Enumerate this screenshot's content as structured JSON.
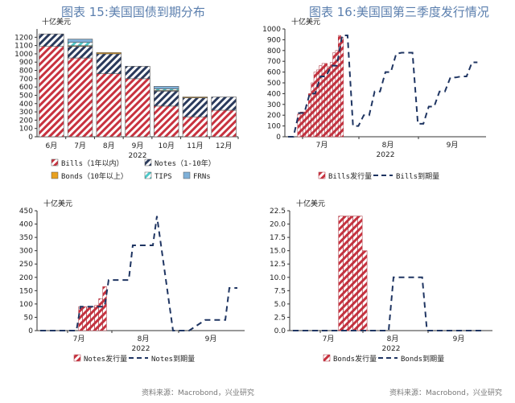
{
  "titles": {
    "left": "图表 15:美国国债到期分布",
    "right": "图表 16:美国国第三季度发行情况"
  },
  "sources": {
    "left": "资料来源：Macrobond，兴业研究",
    "right": "资料来源：Macrobond，兴业研究"
  },
  "colors": {
    "bills": "#c8323f",
    "notes": "#2a3a5c",
    "bonds": "#e8a020",
    "tips": "#4ec9c9",
    "frns": "#7fb0d8",
    "redemption_line": "#1f3562"
  },
  "chart_data": [
    {
      "type": "bar",
      "stacked": true,
      "unit_label": "十亿美元",
      "xlabel": "2022",
      "categories": [
        "6月",
        "7月",
        "8月",
        "9月",
        "10月",
        "11月",
        "12月"
      ],
      "ylim": [
        0,
        1300
      ],
      "yticks": [
        0,
        100,
        200,
        300,
        400,
        500,
        600,
        700,
        800,
        900,
        1000,
        1100,
        1200
      ],
      "series": [
        {
          "name": "Bills（1年以内）",
          "key": "bills",
          "pattern": "hatch",
          "values": [
            1090,
            950,
            760,
            700,
            370,
            240,
            320
          ]
        },
        {
          "name": "Notes（1-10年）",
          "key": "notes",
          "pattern": "hatch",
          "values": [
            150,
            140,
            240,
            150,
            180,
            230,
            160
          ]
        },
        {
          "name": "Bonds（10年以上）",
          "key": "bonds",
          "pattern": "solid",
          "values": [
            0,
            8,
            15,
            0,
            8,
            10,
            0
          ]
        },
        {
          "name": "TIPS",
          "key": "tips",
          "pattern": "hatch",
          "values": [
            0,
            40,
            0,
            0,
            20,
            0,
            0
          ]
        },
        {
          "name": "FRNs",
          "key": "frns",
          "pattern": "solid",
          "values": [
            0,
            40,
            0,
            0,
            30,
            0,
            0
          ]
        }
      ],
      "legend_position": "bottom"
    },
    {
      "type": "bar+line",
      "unit_label": "十亿美元",
      "xlabel": "2022",
      "x_labels": [
        "7月",
        "8月",
        "9月"
      ],
      "ylim": [
        0,
        1000
      ],
      "yticks": [
        0,
        100,
        200,
        300,
        400,
        500,
        600,
        700,
        800,
        900,
        1000
      ],
      "bars": {
        "name": "Bills发行量",
        "x": [
          4,
          5,
          6,
          7,
          8,
          9,
          10,
          11,
          12,
          13,
          14,
          15,
          16,
          17,
          18,
          19,
          20
        ],
        "values": [
          210,
          230,
          230,
          290,
          400,
          500,
          600,
          620,
          660,
          680,
          680,
          650,
          690,
          780,
          800,
          940,
          920
        ]
      },
      "line": {
        "name": "Bills到期量",
        "x": [
          0,
          2,
          4,
          6,
          8,
          10,
          12,
          14,
          16,
          18,
          20,
          22,
          24,
          26,
          28,
          30,
          32,
          34,
          36,
          38,
          40,
          42,
          44,
          46,
          48,
          50,
          52,
          54,
          56,
          58,
          60,
          62,
          64,
          66,
          68,
          70
        ],
        "values": [
          0,
          0,
          220,
          220,
          400,
          400,
          560,
          560,
          660,
          660,
          940,
          940,
          100,
          100,
          200,
          200,
          420,
          420,
          600,
          600,
          770,
          780,
          780,
          780,
          120,
          120,
          280,
          280,
          420,
          420,
          550,
          550,
          560,
          560,
          690,
          690
        ]
      },
      "legend_position": "bottom"
    },
    {
      "type": "bar+line",
      "unit_label": "十亿美元",
      "xlabel": "2022",
      "x_labels": [
        "7月",
        "8月",
        "9月"
      ],
      "ylim": [
        0,
        450
      ],
      "yticks": [
        0,
        50,
        100,
        150,
        200,
        250,
        300,
        350,
        400,
        450
      ],
      "bars": {
        "name": "Notes发行量",
        "x": [
          10,
          11,
          12,
          13,
          14,
          15,
          16
        ],
        "values": [
          90,
          90,
          88,
          90,
          95,
          120,
          165
        ]
      },
      "line": {
        "name": "Notes到期量",
        "x": [
          0,
          9,
          10,
          16,
          17,
          22,
          23,
          28,
          29,
          33,
          34,
          36,
          37,
          41,
          42,
          46,
          47,
          49
        ],
        "values": [
          0,
          0,
          90,
          90,
          190,
          190,
          320,
          320,
          430,
          0,
          0,
          0,
          0,
          40,
          40,
          40,
          160,
          160
        ]
      },
      "legend_position": "bottom"
    },
    {
      "type": "bar+line",
      "unit_label": "十亿美元",
      "xlabel": "2022",
      "x_labels": [
        "7月",
        "8月",
        "9月"
      ],
      "ylim": [
        0,
        22.5
      ],
      "yticks": [
        0.0,
        2.5,
        5.0,
        7.5,
        10.0,
        12.5,
        15.0,
        17.5,
        20.0,
        22.5
      ],
      "bars": {
        "name": "Bonds发行量",
        "x": [
          10,
          11,
          12,
          13,
          14,
          15
        ],
        "values": [
          21.5,
          21.5,
          21.5,
          21.5,
          21.5,
          15.0
        ]
      },
      "line": {
        "name": "Bonds到期量",
        "x": [
          0,
          20,
          21,
          27,
          28,
          40
        ],
        "values": [
          0,
          0,
          10,
          10,
          0,
          0
        ]
      },
      "legend_position": "bottom"
    }
  ]
}
